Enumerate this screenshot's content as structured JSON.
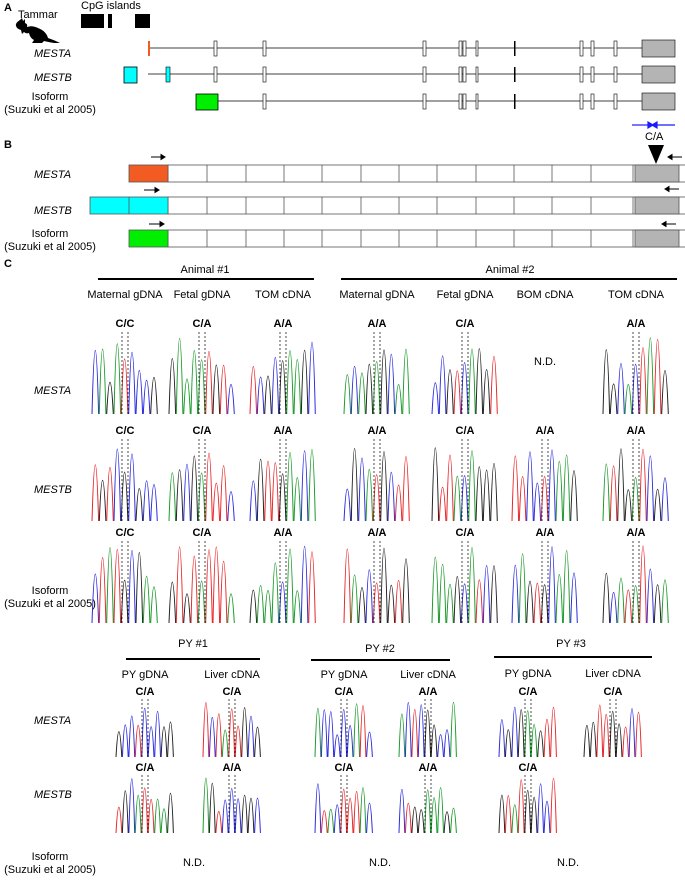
{
  "panels": {
    "a": "A",
    "b": "B",
    "c": "C"
  },
  "panel_a": {
    "species": "Tammar",
    "cpg_label": "CpG islands",
    "tracks": [
      {
        "label": "MESTA",
        "italic": true
      },
      {
        "label": "MESTB",
        "italic": true
      },
      {
        "label": "Isoform",
        "sub": "(Suzuki et al 2005)",
        "italic": false
      }
    ]
  },
  "panel_b": {
    "snp": "C/A",
    "tracks": [
      {
        "label": "MESTA",
        "italic": true,
        "color": "#f25c22"
      },
      {
        "label": "MESTB",
        "italic": true,
        "color": "#00ffff"
      },
      {
        "label": "Isoform",
        "sub": "(Suzuki et al 2005)",
        "italic": false,
        "color": "#00ee00"
      }
    ]
  },
  "colors": {
    "mesta": "#f25c22",
    "mestb": "#00ffff",
    "isoform": "#00ee00",
    "utr": "#b4b4b4",
    "primer_blue": "#1a1aff"
  },
  "panel_c": {
    "nd": "N.D.",
    "animals": [
      {
        "name": "Animal #1",
        "samples": [
          "Maternal gDNA",
          "Fetal gDNA",
          "TOM cDNA"
        ]
      },
      {
        "name": "Animal #2",
        "samples": [
          "Maternal gDNA",
          "Fetal gDNA",
          "BOM cDNA",
          "TOM cDNA"
        ]
      }
    ],
    "rows": [
      {
        "label": "MESTA",
        "italic": true,
        "calls": [
          "C/C",
          "C/A",
          "A/A",
          "A/A",
          "C/A",
          "N.D.",
          "A/A"
        ]
      },
      {
        "label": "MESTB",
        "italic": true,
        "calls": [
          "C/C",
          "C/A",
          "A/A",
          "A/A",
          "C/A",
          "A/A",
          "A/A"
        ]
      },
      {
        "label": "Isoform",
        "sub": "(Suzuki et al 2005)",
        "italic": false,
        "calls": [
          "C/C",
          "C/A",
          "A/A",
          "A/A",
          "C/A",
          "A/A",
          "A/A"
        ]
      }
    ],
    "pouch_young": [
      {
        "name": "PY #1",
        "samples": [
          "PY gDNA",
          "Liver cDNA"
        ]
      },
      {
        "name": "PY #2",
        "samples": [
          "PY gDNA",
          "Liver cDNA"
        ]
      },
      {
        "name": "PY #3",
        "samples": [
          "PY gDNA",
          "Liver cDNA"
        ]
      }
    ],
    "py_rows": [
      {
        "label": "MESTA",
        "italic": true,
        "calls": [
          "C/A",
          "C/A",
          "C/A",
          "A/A",
          "C/A",
          "C/A"
        ]
      },
      {
        "label": "MESTB",
        "italic": true,
        "calls": [
          "C/A",
          "A/A",
          "C/A",
          "A/A",
          "C/A",
          ""
        ]
      },
      {
        "label": "Isoform",
        "sub": "(Suzuki et al 2005)",
        "italic": false,
        "calls": [
          "N.D.",
          "N.D.",
          "N.D."
        ]
      }
    ]
  }
}
